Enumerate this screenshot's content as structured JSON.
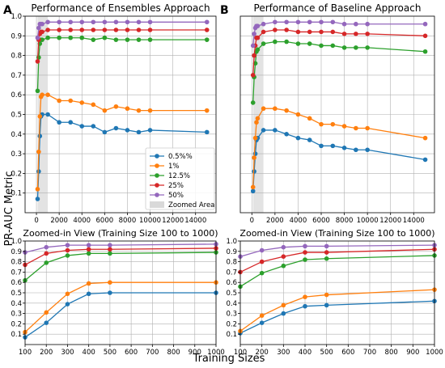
{
  "figure": {
    "ylabel": "PR-AUC Metric",
    "xlabel": "Training Sizes"
  },
  "colors": {
    "0.5%%": "#1f77b4",
    "1%": "#ff7f0e",
    "12.5%": "#2ca02c",
    "25%": "#d62728",
    "50%": "#9467bd",
    "zoomed_area": "#d9d9d9"
  },
  "legend": {
    "placement": "inside lower-right of panel A",
    "entries": [
      "0.5%%",
      "1%",
      "12.5%",
      "25%",
      "50%"
    ],
    "zoomed_label": "Zoomed Area"
  },
  "chart_data": [
    {
      "id": "A",
      "panel_letter": "A",
      "type": "line",
      "title": "Performance of Ensembles Approach",
      "xlim": [
        -1000,
        15800
      ],
      "ylim": [
        0,
        1
      ],
      "xticks": [
        0,
        2000,
        4000,
        6000,
        8000,
        10000,
        12000,
        14000
      ],
      "xtick_labels": [
        "0",
        "2000",
        "4000",
        "6000",
        "8000",
        "10000",
        "12000",
        "14000"
      ],
      "yticks": [
        0.1,
        0.2,
        0.3,
        0.4,
        0.5,
        0.6,
        0.7,
        0.8,
        0.9,
        1.0
      ],
      "ytick_labels": [
        "0.1",
        "0.2",
        "0.3",
        "0.4",
        "0.5",
        "0.6",
        "0.7",
        "0.8",
        "0.9",
        "1.0"
      ],
      "grid": true,
      "zoomed_span": [
        100,
        1000
      ],
      "x": [
        100,
        200,
        300,
        400,
        500,
        1000,
        2000,
        3000,
        4000,
        5000,
        6000,
        7000,
        8000,
        9000,
        10000,
        15000
      ],
      "series": [
        {
          "name": "0.5%%",
          "values": [
            0.07,
            0.21,
            0.39,
            0.49,
            0.5,
            0.5,
            0.46,
            0.46,
            0.44,
            0.44,
            0.41,
            0.43,
            0.42,
            0.41,
            0.42,
            0.41
          ]
        },
        {
          "name": "1%",
          "values": [
            0.12,
            0.31,
            0.49,
            0.59,
            0.6,
            0.6,
            0.57,
            0.57,
            0.56,
            0.55,
            0.52,
            0.54,
            0.53,
            0.52,
            0.52,
            0.52
          ]
        },
        {
          "name": "12.5%",
          "values": [
            0.62,
            0.79,
            0.86,
            0.88,
            0.88,
            0.89,
            0.89,
            0.89,
            0.89,
            0.88,
            0.89,
            0.88,
            0.88,
            0.88,
            0.88,
            0.88
          ]
        },
        {
          "name": "25%",
          "values": [
            0.77,
            0.88,
            0.91,
            0.92,
            0.92,
            0.93,
            0.93,
            0.93,
            0.93,
            0.93,
            0.93,
            0.93,
            0.93,
            0.93,
            0.93,
            0.93
          ]
        },
        {
          "name": "50%",
          "values": [
            0.89,
            0.94,
            0.96,
            0.96,
            0.96,
            0.97,
            0.97,
            0.97,
            0.97,
            0.97,
            0.97,
            0.97,
            0.97,
            0.97,
            0.97,
            0.97
          ]
        }
      ]
    },
    {
      "id": "B",
      "panel_letter": "B",
      "type": "line",
      "title": "Performance of Baseline Approach",
      "xlim": [
        -1000,
        15800
      ],
      "ylim": [
        0,
        1
      ],
      "xticks": [
        0,
        2000,
        4000,
        6000,
        8000,
        10000,
        12000,
        14000
      ],
      "xtick_labels": [
        "0",
        "2000",
        "4000",
        "6000",
        "8000",
        "10000",
        "12000",
        "14000"
      ],
      "yticks": [],
      "ytick_labels": [],
      "grid": true,
      "zoomed_span": [
        100,
        1000
      ],
      "x": [
        100,
        200,
        300,
        400,
        500,
        1000,
        2000,
        3000,
        4000,
        5000,
        6000,
        7000,
        8000,
        9000,
        10000,
        15000
      ],
      "series": [
        {
          "name": "0.5%%",
          "values": [
            0.11,
            0.21,
            0.3,
            0.37,
            0.38,
            0.42,
            0.42,
            0.4,
            0.38,
            0.37,
            0.34,
            0.34,
            0.33,
            0.32,
            0.32,
            0.27
          ]
        },
        {
          "name": "1%",
          "values": [
            0.13,
            0.28,
            0.38,
            0.46,
            0.48,
            0.53,
            0.53,
            0.52,
            0.5,
            0.48,
            0.45,
            0.45,
            0.44,
            0.43,
            0.43,
            0.38
          ]
        },
        {
          "name": "12.5%",
          "values": [
            0.56,
            0.69,
            0.76,
            0.82,
            0.83,
            0.86,
            0.87,
            0.87,
            0.86,
            0.86,
            0.85,
            0.85,
            0.84,
            0.84,
            0.84,
            0.82
          ]
        },
        {
          "name": "25%",
          "values": [
            0.7,
            0.8,
            0.85,
            0.89,
            0.89,
            0.92,
            0.93,
            0.93,
            0.92,
            0.92,
            0.92,
            0.92,
            0.91,
            0.91,
            0.91,
            0.9
          ]
        },
        {
          "name": "50%",
          "values": [
            0.85,
            0.91,
            0.94,
            0.95,
            0.95,
            0.96,
            0.97,
            0.97,
            0.97,
            0.97,
            0.97,
            0.97,
            0.96,
            0.96,
            0.96,
            0.96
          ]
        }
      ]
    },
    {
      "id": "C",
      "type": "line",
      "title": "Zoomed-in View (Training Size 100 to 1000)",
      "xlim": [
        100,
        1000
      ],
      "ylim": [
        0,
        1
      ],
      "xticks": [
        100,
        200,
        300,
        400,
        500,
        600,
        700,
        800,
        900,
        1000
      ],
      "xtick_labels": [
        "100",
        "200",
        "300",
        "400",
        "500",
        "600",
        "700",
        "800",
        "900",
        "1000"
      ],
      "yticks": [
        0.1,
        0.2,
        0.3,
        0.4,
        0.5,
        0.6,
        0.7,
        0.8,
        0.9,
        1.0
      ],
      "ytick_labels": [
        "0.1",
        "0.2",
        "0.3",
        "0.4",
        "0.5",
        "0.6",
        "0.7",
        "0.8",
        "0.9",
        "1.0"
      ],
      "grid": true,
      "x": [
        100,
        200,
        300,
        400,
        500,
        1000
      ],
      "series": [
        {
          "name": "0.5%%",
          "values": [
            0.07,
            0.21,
            0.39,
            0.49,
            0.5,
            0.5
          ]
        },
        {
          "name": "1%",
          "values": [
            0.12,
            0.31,
            0.49,
            0.59,
            0.6,
            0.6
          ]
        },
        {
          "name": "12.5%",
          "values": [
            0.62,
            0.79,
            0.86,
            0.88,
            0.88,
            0.89
          ]
        },
        {
          "name": "25%",
          "values": [
            0.77,
            0.88,
            0.91,
            0.92,
            0.92,
            0.93
          ]
        },
        {
          "name": "50%",
          "values": [
            0.89,
            0.94,
            0.96,
            0.96,
            0.96,
            0.97
          ]
        }
      ]
    },
    {
      "id": "D",
      "type": "line",
      "title": "Zoomed-in View (Training Size 100 to 1000)",
      "xlim": [
        100,
        1000
      ],
      "ylim": [
        0,
        1
      ],
      "xticks": [
        100,
        200,
        300,
        400,
        500,
        600,
        700,
        800,
        900,
        1000
      ],
      "xtick_labels": [
        "100",
        "200",
        "300",
        "400",
        "500",
        "600",
        "700",
        "800",
        "900",
        "1000"
      ],
      "yticks": [
        0.1,
        0.2,
        0.3,
        0.4,
        0.5,
        0.6,
        0.7,
        0.8,
        0.9,
        1.0
      ],
      "ytick_labels": [
        "0.1",
        "0.2",
        "0.3",
        "0.4",
        "0.5",
        "0.6",
        "0.7",
        "0.8",
        "0.9",
        "1.0"
      ],
      "grid": true,
      "x": [
        100,
        200,
        300,
        400,
        500,
        1000
      ],
      "series": [
        {
          "name": "0.5%%",
          "values": [
            0.11,
            0.21,
            0.3,
            0.37,
            0.38,
            0.42
          ]
        },
        {
          "name": "1%",
          "values": [
            0.13,
            0.28,
            0.38,
            0.46,
            0.48,
            0.53
          ]
        },
        {
          "name": "12.5%",
          "values": [
            0.56,
            0.69,
            0.76,
            0.82,
            0.83,
            0.86
          ]
        },
        {
          "name": "25%",
          "values": [
            0.7,
            0.8,
            0.85,
            0.89,
            0.89,
            0.92
          ]
        },
        {
          "name": "50%",
          "values": [
            0.85,
            0.91,
            0.94,
            0.95,
            0.95,
            0.96
          ]
        }
      ]
    }
  ]
}
